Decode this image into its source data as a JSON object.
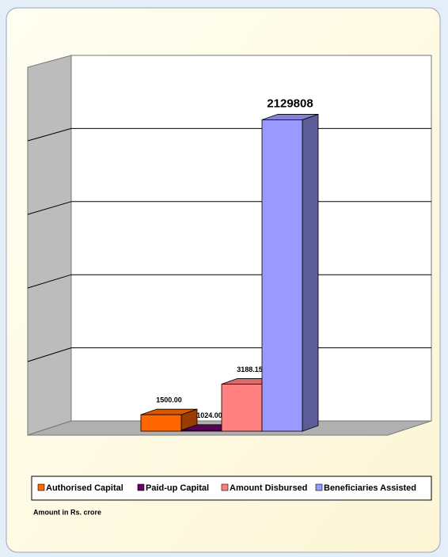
{
  "chart_data": {
    "type": "bar",
    "categories": [
      "Authorised Capital",
      "Paid-up Capital",
      "Amount Disbursed",
      "Beneficiaries Assisted"
    ],
    "values": [
      1500.0,
      1024.0,
      3188.15,
      2129808
    ],
    "value_labels": [
      "1500.00",
      "1024.00",
      "3188.15",
      "2129808"
    ],
    "colors": [
      "#ff6600",
      "#660066",
      "#ff8080",
      "#9999ff"
    ],
    "log_scale": true,
    "ylim": [
      1000,
      10000000
    ],
    "grid": true,
    "note": "Amount in Rs. crore"
  }
}
